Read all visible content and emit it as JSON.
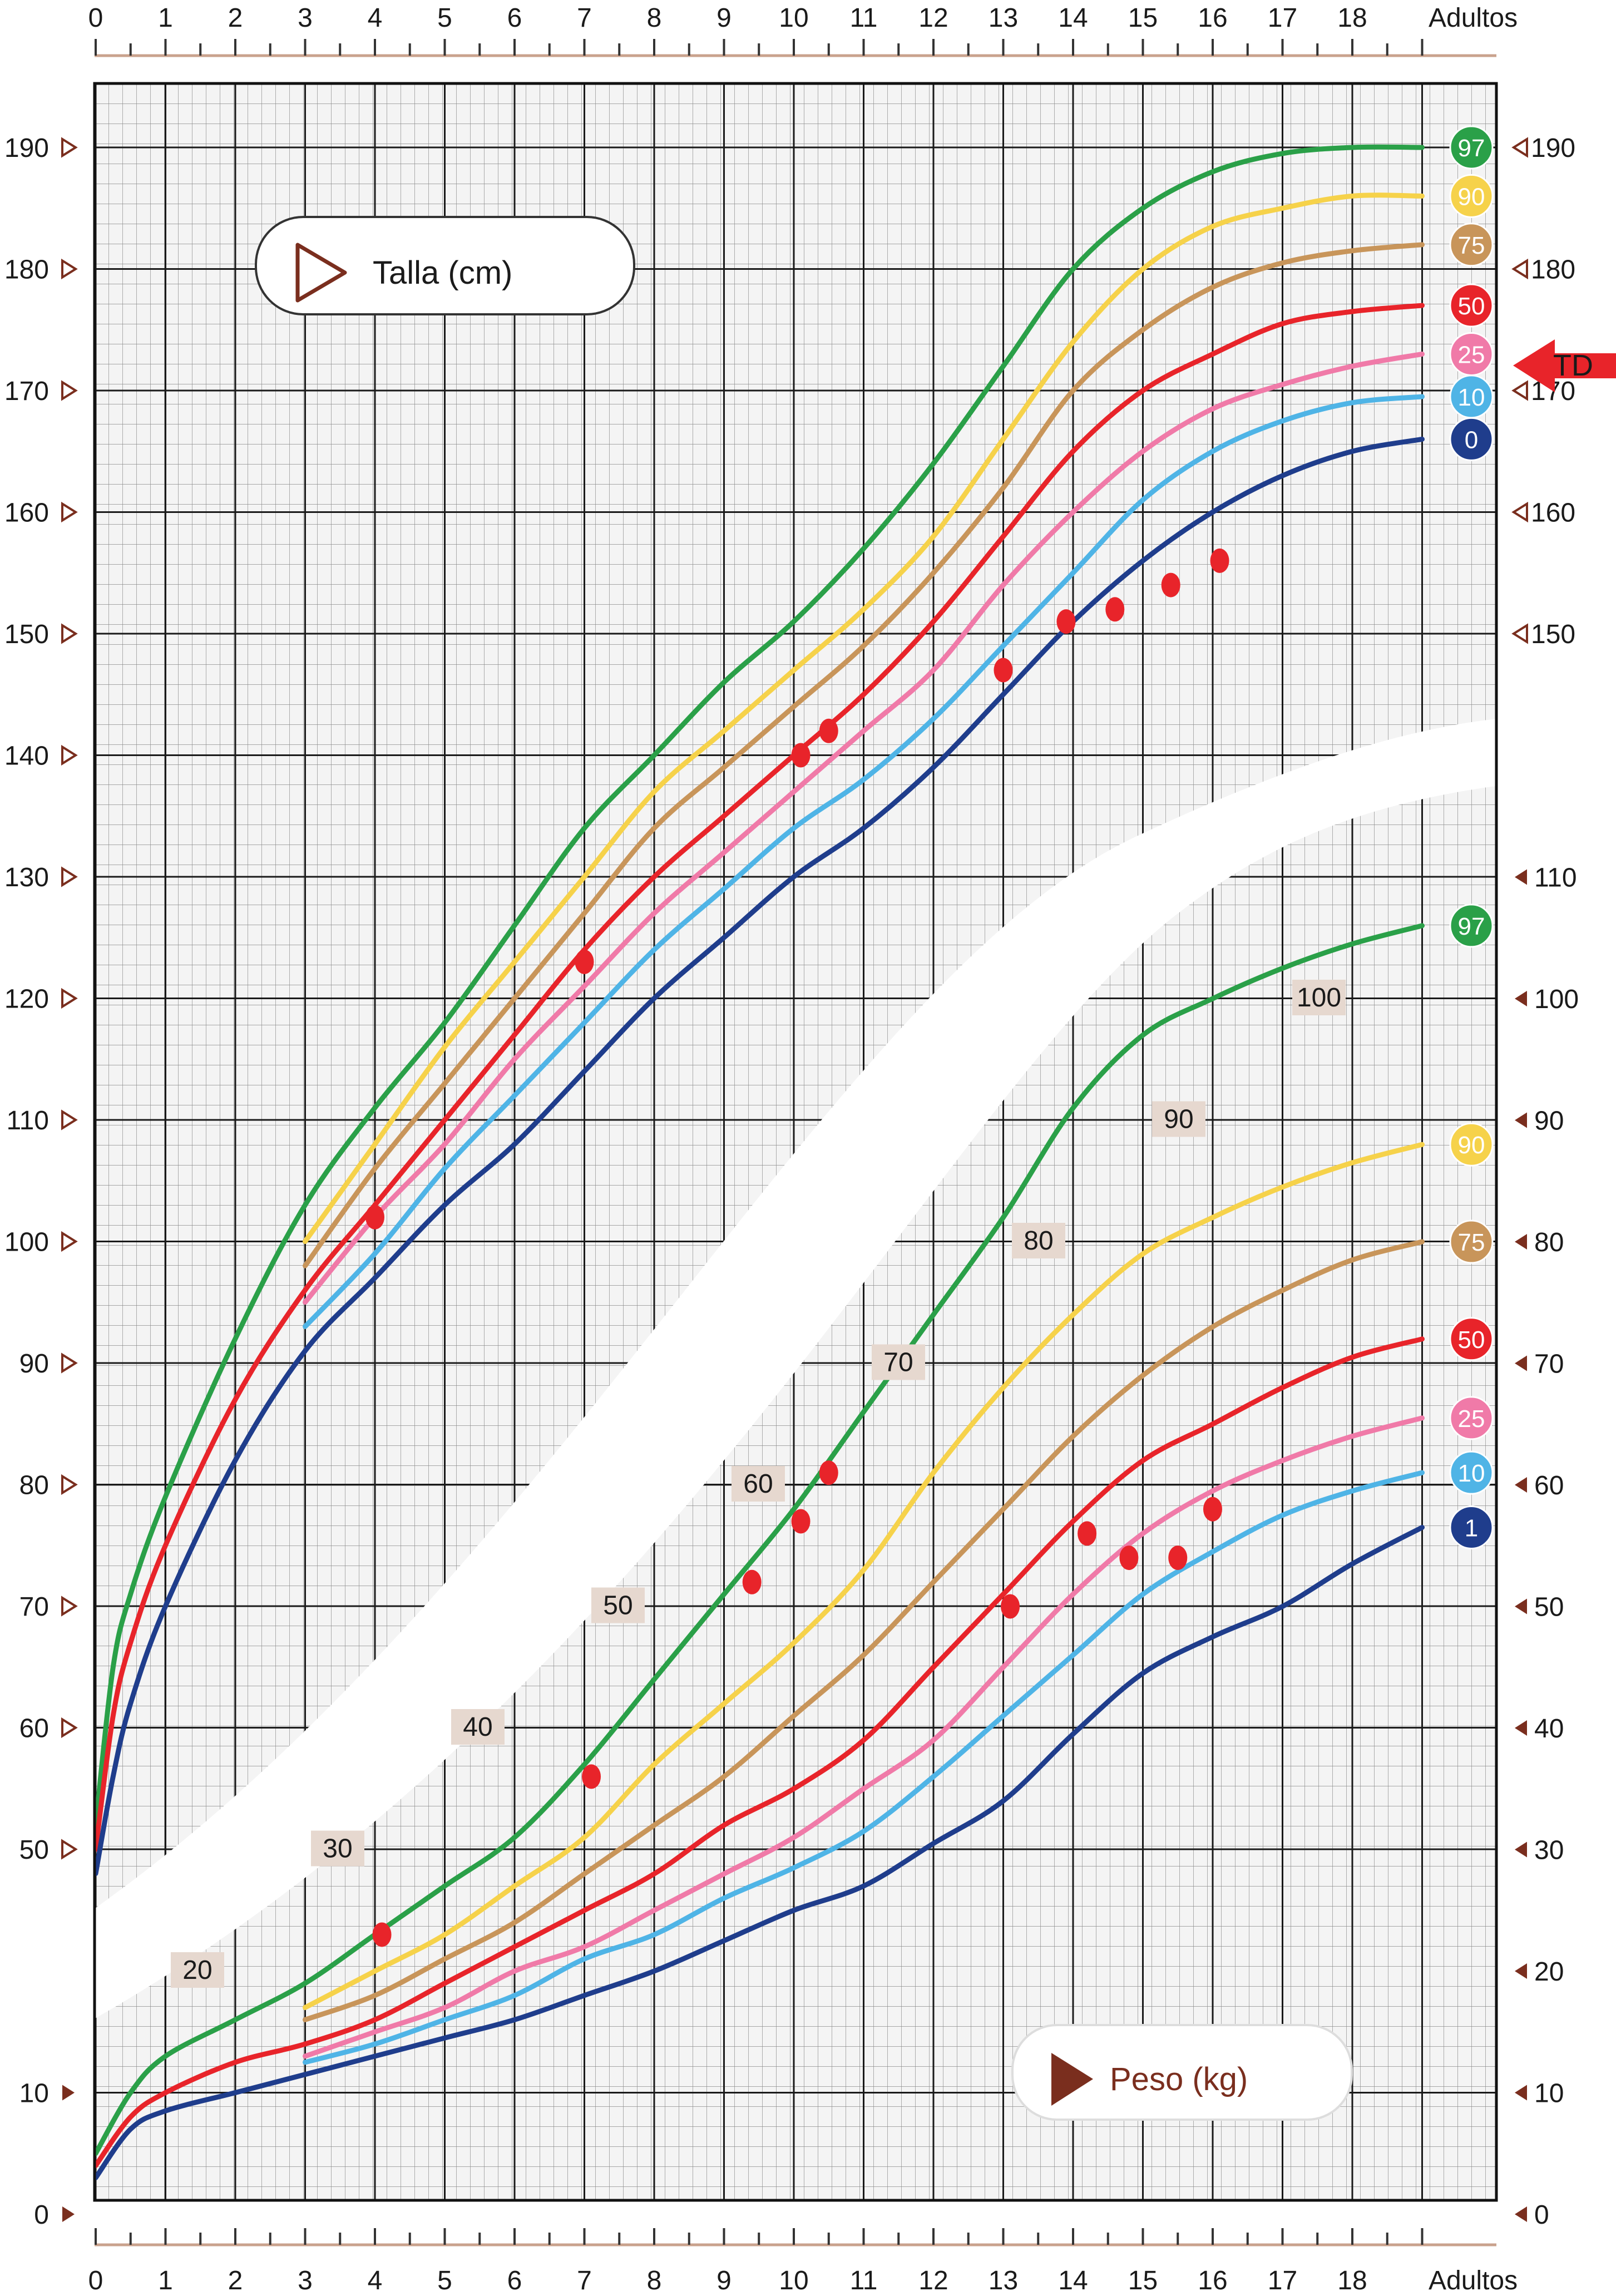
{
  "chart_data": {
    "type": "line",
    "title": "",
    "height_panel": {
      "label": "Talla (cm)",
      "ylim": [
        45,
        195
      ],
      "y_ticks_left": [
        50,
        60,
        70,
        80,
        90,
        100,
        110,
        120,
        130,
        140,
        150,
        160,
        170,
        180,
        190
      ],
      "y_ticks_right": [
        150,
        160,
        170,
        180,
        190
      ],
      "percentile_badges": [
        "97",
        "90",
        "75",
        "50",
        "25",
        "10",
        "0"
      ],
      "target_marker": "TD",
      "target_value": 172,
      "series": [
        {
          "name": "97",
          "color": "#2aa048",
          "x": [
            0,
            0.25,
            0.5,
            1,
            2,
            3,
            4,
            5,
            6,
            7,
            8,
            9,
            10,
            11,
            12,
            13,
            14,
            15,
            16,
            17,
            18,
            19
          ],
          "values": [
            52,
            65,
            71,
            79,
            92,
            103,
            111,
            118,
            126,
            134,
            140,
            146,
            151,
            157,
            164,
            172,
            180,
            185,
            188,
            189.5,
            190,
            190
          ]
        },
        {
          "name": "90",
          "color": "#f6d24a",
          "x": [
            3,
            4,
            5,
            6,
            7,
            8,
            9,
            10,
            11,
            12,
            13,
            14,
            15,
            16,
            17,
            18,
            19
          ],
          "values": [
            100,
            108,
            116,
            123,
            130,
            137,
            142,
            147,
            152,
            158,
            166,
            174,
            180,
            183.5,
            185,
            186,
            186
          ]
        },
        {
          "name": "75",
          "color": "#c8955a",
          "x": [
            3,
            4,
            5,
            6,
            7,
            8,
            9,
            10,
            11,
            12,
            13,
            14,
            15,
            16,
            17,
            18,
            19
          ],
          "values": [
            98,
            106,
            113,
            120,
            127,
            134,
            139,
            144,
            149,
            155,
            162,
            170,
            175,
            178.5,
            180.5,
            181.5,
            182
          ]
        },
        {
          "name": "50",
          "color": "#e8242a",
          "x": [
            0,
            0.25,
            0.5,
            1,
            2,
            3,
            4,
            5,
            6,
            7,
            8,
            9,
            10,
            11,
            12,
            13,
            14,
            15,
            16,
            17,
            18,
            19
          ],
          "values": [
            50,
            61,
            67,
            75,
            87,
            96,
            103,
            110,
            117,
            124,
            130,
            135,
            140,
            145,
            151,
            158,
            165,
            170,
            173,
            175.5,
            176.5,
            177
          ]
        },
        {
          "name": "25",
          "color": "#f07aa8",
          "x": [
            3,
            4,
            5,
            6,
            7,
            8,
            9,
            10,
            11,
            12,
            13,
            14,
            15,
            16,
            17,
            18,
            19
          ],
          "values": [
            95,
            102,
            108,
            115,
            121,
            127,
            132,
            137,
            142,
            147,
            154,
            160,
            165,
            168.5,
            170.5,
            172,
            173
          ]
        },
        {
          "name": "10",
          "color": "#4fb4e6",
          "x": [
            3,
            4,
            5,
            6,
            7,
            8,
            9,
            10,
            11,
            12,
            13,
            14,
            15,
            16,
            17,
            18,
            19
          ],
          "values": [
            93,
            99,
            106,
            112,
            118,
            124,
            129,
            134,
            138,
            143,
            149,
            155,
            161,
            165,
            167.5,
            169,
            169.5
          ]
        },
        {
          "name": "0",
          "color": "#1f3d8c",
          "x": [
            0,
            0.25,
            0.5,
            1,
            2,
            3,
            4,
            5,
            6,
            7,
            8,
            9,
            10,
            11,
            12,
            13,
            14,
            15,
            16,
            17,
            18,
            19
          ],
          "values": [
            48,
            56,
            62,
            70,
            82,
            91,
            97,
            103,
            108,
            114,
            120,
            125,
            130,
            134,
            139,
            145,
            151,
            156,
            160,
            163,
            165,
            166
          ]
        }
      ],
      "patient_points": {
        "x": [
          4,
          7,
          10.1,
          10.5,
          13,
          13.9,
          14.6,
          15.4,
          16.1
        ],
        "values": [
          102,
          123,
          140,
          142,
          147,
          151,
          152,
          154,
          156
        ]
      }
    },
    "weight_panel": {
      "label": "Peso (kg)",
      "ylim": [
        0,
        110
      ],
      "y_ticks_right": [
        0,
        10,
        20,
        30,
        40,
        50,
        60,
        70,
        80,
        90,
        100,
        110
      ],
      "y_ticks_left": [
        0,
        10
      ],
      "diagonal_labels": [
        "20",
        "30",
        "40",
        "50",
        "60",
        "70",
        "80",
        "90",
        "100"
      ],
      "percentile_badges": [
        "97",
        "90",
        "75",
        "50",
        "25",
        "10",
        "1"
      ],
      "series": [
        {
          "name": "97",
          "color": "#2aa048",
          "x": [
            0,
            0.5,
            1,
            2,
            3,
            4,
            5,
            6,
            7,
            8,
            9,
            10,
            11,
            12,
            13,
            14,
            15,
            16,
            17,
            18,
            19
          ],
          "values": [
            5,
            10,
            13,
            16,
            19,
            23,
            27,
            31,
            37,
            44,
            51,
            58,
            66,
            74,
            82,
            91,
            97,
            100,
            102.5,
            104.5,
            106
          ]
        },
        {
          "name": "90",
          "color": "#f6d24a",
          "x": [
            3,
            4,
            5,
            6,
            7,
            8,
            9,
            10,
            11,
            12,
            13,
            14,
            15,
            16,
            17,
            18,
            19
          ],
          "values": [
            17,
            20,
            23,
            27,
            31,
            37,
            42,
            47,
            53,
            61,
            68,
            74,
            79,
            82,
            84.5,
            86.5,
            88
          ]
        },
        {
          "name": "75",
          "color": "#c8955a",
          "x": [
            3,
            4,
            5,
            6,
            7,
            8,
            9,
            10,
            11,
            12,
            13,
            14,
            15,
            16,
            17,
            18,
            19
          ],
          "values": [
            16,
            18,
            21,
            24,
            28,
            32,
            36,
            41,
            46,
            52,
            58,
            64,
            69,
            73,
            76,
            78.5,
            80
          ]
        },
        {
          "name": "50",
          "color": "#e8242a",
          "x": [
            0,
            0.5,
            1,
            2,
            3,
            4,
            5,
            6,
            7,
            8,
            9,
            10,
            11,
            12,
            13,
            14,
            15,
            16,
            17,
            18,
            19
          ],
          "values": [
            4,
            8,
            10,
            12.5,
            14,
            16,
            19,
            22,
            25,
            28,
            32,
            35,
            39,
            45,
            51,
            57,
            62,
            65,
            68,
            70.5,
            72
          ]
        },
        {
          "name": "25",
          "color": "#f07aa8",
          "x": [
            3,
            4,
            5,
            6,
            7,
            8,
            9,
            10,
            11,
            12,
            13,
            14,
            15,
            16,
            17,
            18,
            19
          ],
          "values": [
            13,
            15,
            17,
            20,
            22,
            25,
            28,
            31,
            35,
            39,
            45,
            51,
            56,
            59.5,
            62,
            64,
            65.5
          ]
        },
        {
          "name": "10",
          "color": "#4fb4e6",
          "x": [
            3,
            4,
            5,
            6,
            7,
            8,
            9,
            10,
            11,
            12,
            13,
            14,
            15,
            16,
            17,
            18,
            19
          ],
          "values": [
            12.5,
            14,
            16,
            18,
            21,
            23,
            26,
            28.5,
            31.5,
            36,
            41,
            46,
            51,
            54.5,
            57.5,
            59.5,
            61
          ]
        },
        {
          "name": "1",
          "color": "#1f3d8c",
          "x": [
            0,
            0.5,
            1,
            2,
            3,
            4,
            5,
            6,
            7,
            8,
            9,
            10,
            11,
            12,
            13,
            14,
            15,
            16,
            17,
            18,
            19
          ],
          "values": [
            3,
            7,
            8.5,
            10,
            11.5,
            13,
            14.5,
            16,
            18,
            20,
            22.5,
            25,
            27,
            30.5,
            34,
            39.5,
            44.5,
            47.5,
            50,
            53.5,
            56.5
          ]
        }
      ],
      "patient_points": {
        "x": [
          4.1,
          7.1,
          9.4,
          10.1,
          10.5,
          13.1,
          14.2,
          14.8,
          15.5,
          16
        ],
        "values": [
          23,
          36,
          52,
          57,
          61,
          50,
          56,
          54,
          54,
          58
        ]
      }
    },
    "x_axis": {
      "ticks": [
        "0",
        "1",
        "2",
        "3",
        "4",
        "5",
        "6",
        "7",
        "8",
        "9",
        "10",
        "11",
        "12",
        "13",
        "14",
        "15",
        "16",
        "17",
        "18",
        "Adultos"
      ],
      "range": [
        0,
        19
      ]
    },
    "legend": "none",
    "grid": true
  },
  "colors": {
    "grid_major": "#1a1a1a",
    "grid_minor": "#8c8c8c",
    "frame": "#111111",
    "patient": "#e8242a",
    "badge_text": "#ffffff",
    "ruler": "#c9a28d",
    "triangle": "#7a2e1e"
  }
}
